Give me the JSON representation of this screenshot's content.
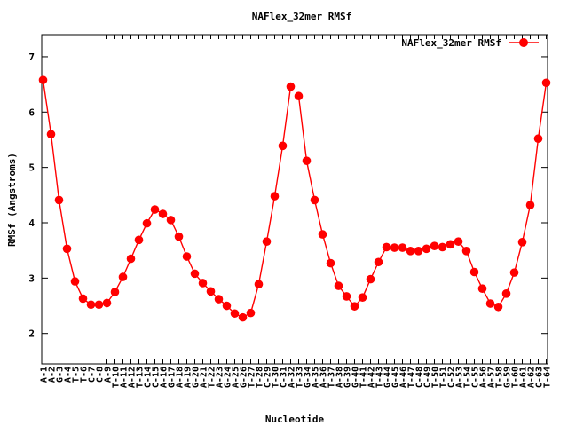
{
  "chart_data": {
    "type": "line",
    "title": "NAFlex_32mer RMSf",
    "xlabel": "Nucleotide",
    "ylabel": "RMSf (Angstroms)",
    "ylim": [
      1.45,
      7.4
    ],
    "yticks": [
      2,
      3,
      4,
      5,
      6,
      7
    ],
    "grid": false,
    "legend_position": "top-right",
    "series": [
      {
        "name": "NAFlex_32mer RMSf",
        "color": "#ff0000",
        "segments": [
          [
            0,
            31
          ],
          [
            32,
            63
          ]
        ],
        "values": [
          6.58,
          5.6,
          4.41,
          3.53,
          2.94,
          2.63,
          2.52,
          2.52,
          2.55,
          2.75,
          3.02,
          3.35,
          3.69,
          3.99,
          4.24,
          4.16,
          4.05,
          3.75,
          3.39,
          3.08,
          2.91,
          2.76,
          2.62,
          2.5,
          2.36,
          2.29,
          2.37,
          2.89,
          3.66,
          4.48,
          5.39,
          6.46,
          6.29,
          5.12,
          4.41,
          3.79,
          3.27,
          2.86,
          2.67,
          2.49,
          2.65,
          2.98,
          3.29,
          3.56,
          3.55,
          3.55,
          3.49,
          3.49,
          3.53,
          3.58,
          3.56,
          3.61,
          3.66,
          3.49,
          3.11,
          2.81,
          2.54,
          2.48,
          2.72,
          3.1,
          3.65,
          4.32,
          5.52,
          6.53
        ]
      }
    ],
    "categories": [
      "A-1",
      "A-2",
      "G-3",
      "A-4",
      "T-5",
      "T-6",
      "C-7",
      "C-8",
      "A-9",
      "T-10",
      "A-11",
      "A-12",
      "T-13",
      "C-14",
      "C-15",
      "A-16",
      "G-17",
      "A-18",
      "A-19",
      "G-20",
      "A-21",
      "T-22",
      "A-23",
      "G-24",
      "A-25",
      "G-26",
      "T-27",
      "T-28",
      "C-29",
      "T-30",
      "C-31",
      "A-32",
      "T-33",
      "G-34",
      "A-35",
      "A-36",
      "T-37",
      "A-38",
      "G-39",
      "G-40",
      "T-41",
      "A-42",
      "T-43",
      "G-44",
      "G-45",
      "A-46",
      "T-47",
      "C-48",
      "C-49",
      "T-50",
      "T-51",
      "C-52",
      "A-53",
      "T-54",
      "C-55",
      "A-56",
      "A-57",
      "T-58",
      "G-59",
      "T-60",
      "A-61",
      "A-62",
      "C-63",
      "T-64"
    ]
  }
}
